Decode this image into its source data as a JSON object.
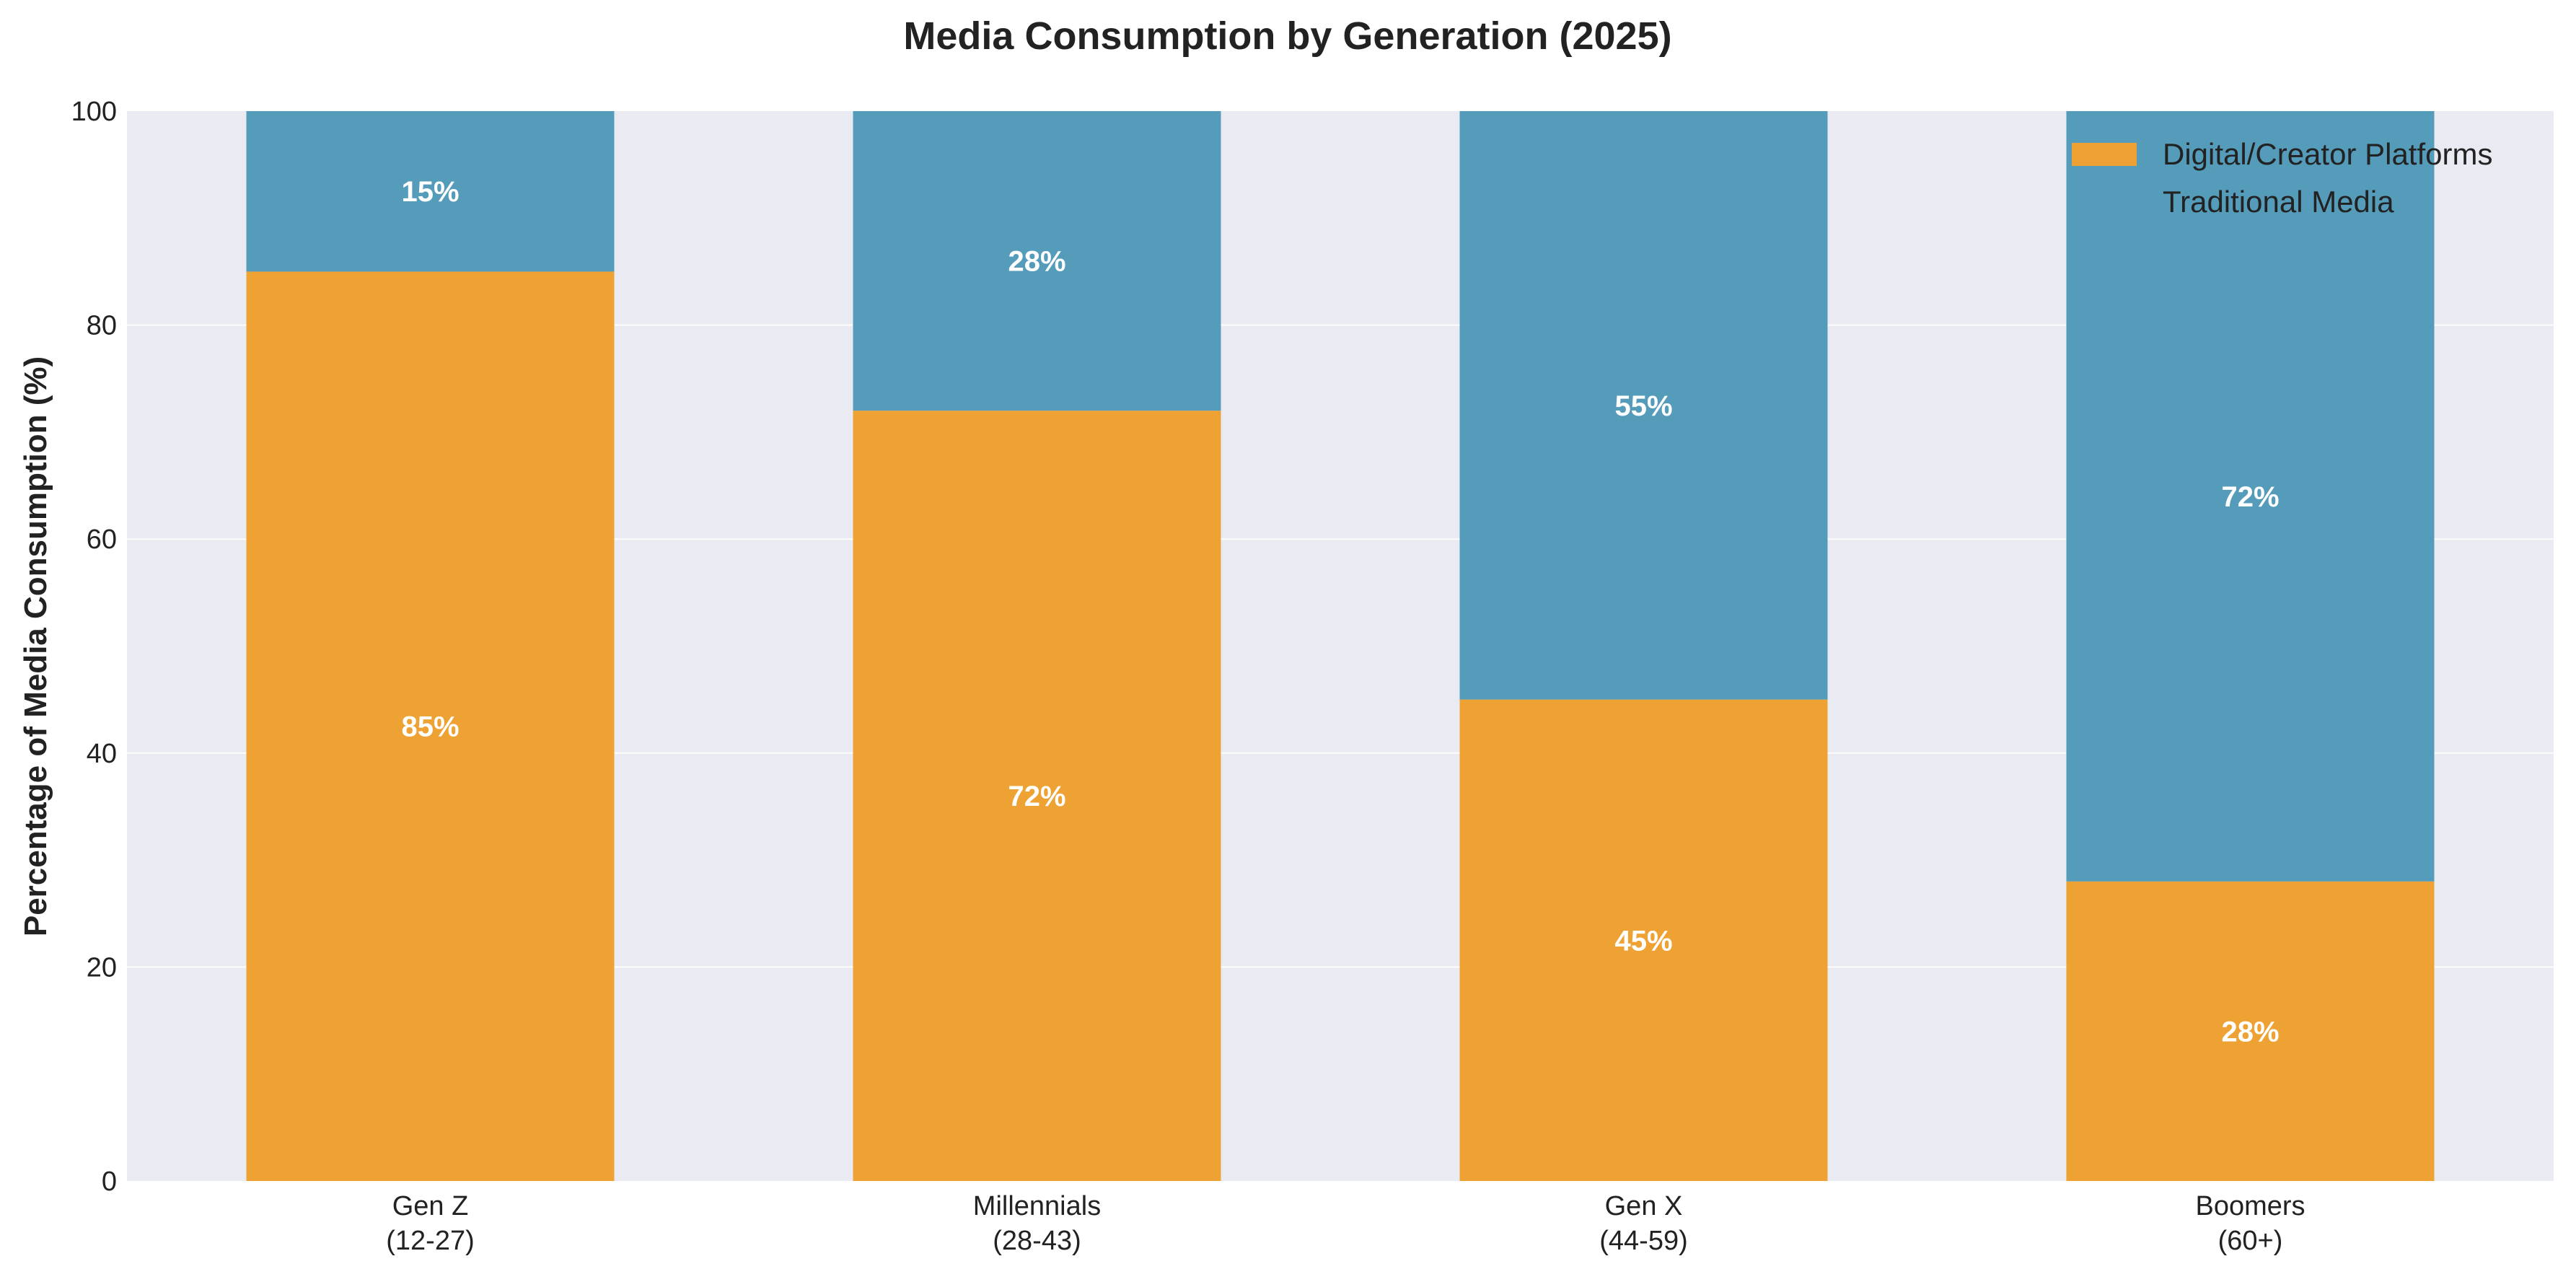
{
  "chart_data": {
    "type": "bar",
    "stacked": true,
    "title": "Media Consumption by Generation (2025)",
    "xlabel": "",
    "ylabel": "Percentage of Media Consumption (%)",
    "ylim": [
      0,
      100
    ],
    "yticks": [
      "0",
      "20",
      "40",
      "60",
      "80",
      "100"
    ],
    "grid": true,
    "legend_position": "top-right",
    "categories": [
      [
        "Gen Z",
        "(12-27)"
      ],
      [
        "Millennials",
        "(28-43)"
      ],
      [
        "Gen X",
        "(44-59)"
      ],
      [
        "Boomers",
        "(60+)"
      ]
    ],
    "series": [
      {
        "name": "Digital/Creator Platforms",
        "color": "#efa234",
        "values": [
          85,
          72,
          45,
          28
        ],
        "labels": [
          "85%",
          "72%",
          "45%",
          "28%"
        ]
      },
      {
        "name": "Traditional Media",
        "color": "#559cba",
        "values": [
          15,
          28,
          55,
          72
        ],
        "labels": [
          "15%",
          "28%",
          "55%",
          "72%"
        ]
      }
    ]
  }
}
